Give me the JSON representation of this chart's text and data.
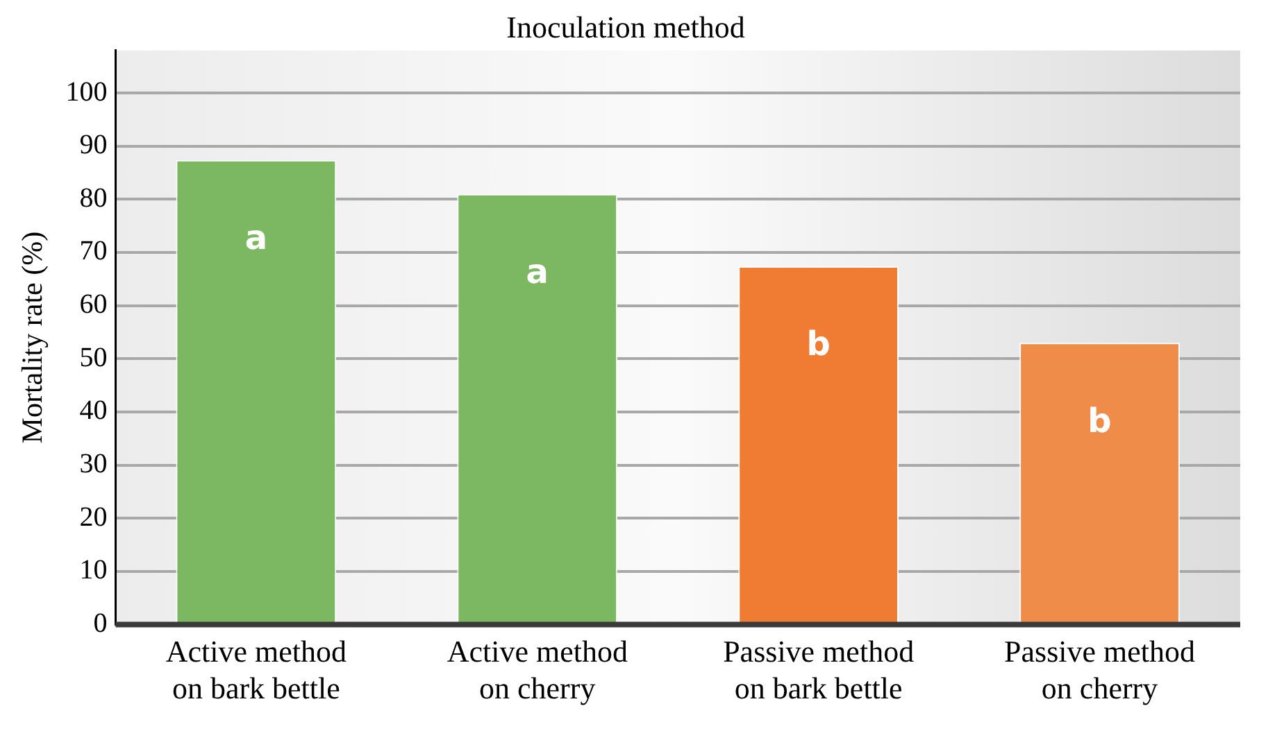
{
  "chart_data": {
    "type": "bar",
    "title": "Inoculation method",
    "ylabel": "Mortality rate (%)",
    "categories": [
      "Active method on bark bettle",
      "Active method on cherry",
      "Passive method on bark bettle",
      "Passive method on cherry"
    ],
    "values": [
      87.4,
      81,
      67.4,
      53
    ],
    "colors": [
      "#7cb862",
      "#7cb862",
      "#f07c33",
      "#f08c4a"
    ],
    "ylim": [
      0,
      108
    ],
    "yticks": [
      0,
      10,
      20,
      30,
      40,
      50,
      60,
      70,
      80,
      90,
      100
    ],
    "grid": "y",
    "legend": false,
    "annotations": [
      "a",
      "a",
      "b",
      "b"
    ]
  }
}
